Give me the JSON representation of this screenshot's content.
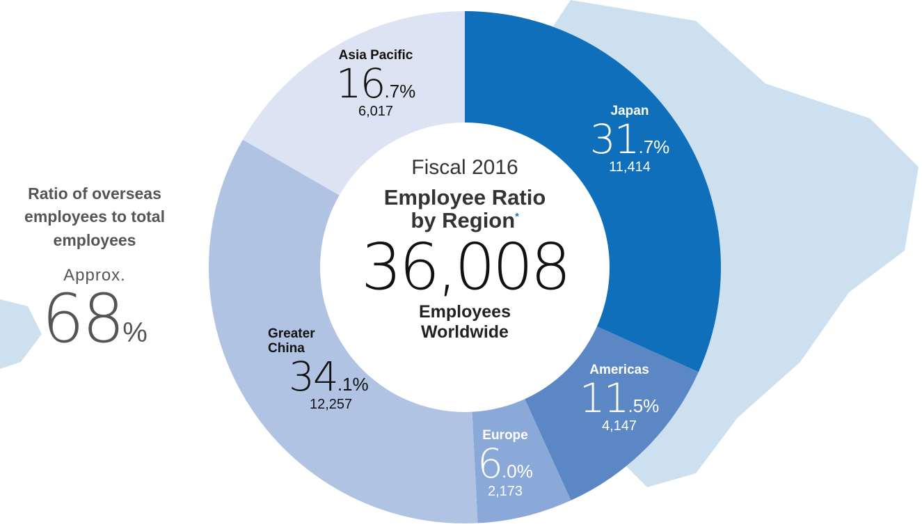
{
  "chart_data": {
    "type": "donut",
    "subtitle": "Fiscal 2016",
    "title": "Employee Ratio by Region",
    "title_note": "*",
    "total": "36,008",
    "total_label": "Employees Worldwide",
    "categories": [
      "Japan",
      "Americas",
      "Europe",
      "Greater China",
      "Asia Pacific"
    ],
    "values": [
      31.7,
      11.5,
      6.0,
      34.1,
      16.7
    ],
    "value_labels": [
      "31.7%",
      "11.5%",
      "6.0%",
      "34.1%",
      "16.7%"
    ],
    "employee_labels": [
      "11,414",
      "4,147",
      "2,173",
      "12,257",
      "6,017"
    ],
    "colors": [
      "#0f6fba",
      "#5b87c5",
      "#8aa8d8",
      "#b1c3e3",
      "#dce3f3"
    ],
    "side_note": {
      "label": "Ratio of overseas employees to total employees",
      "prefix": "Approx.",
      "value": "68%"
    }
  }
}
